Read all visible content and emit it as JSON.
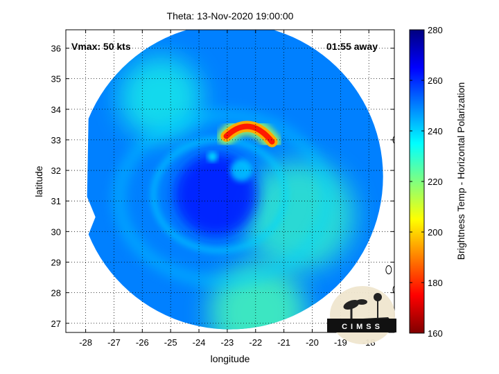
{
  "chart_data": {
    "type": "heatmap",
    "title": "Theta: 13-Nov-2020 19:00:00",
    "xlabel": "longitude",
    "ylabel": "latitude",
    "xlim": [
      -28.7,
      -17.1
    ],
    "ylim": [
      26.7,
      36.6
    ],
    "grid": true,
    "x_ticks": [
      -28,
      -27,
      -26,
      -25,
      -24,
      -23,
      -22,
      -21,
      -20,
      -19,
      -18
    ],
    "y_ticks": [
      27,
      28,
      29,
      30,
      31,
      32,
      33,
      34,
      35,
      36
    ],
    "colorbar": {
      "label": "Brightness Temp - Horizontal Polarization",
      "min": 160,
      "max": 280,
      "ticks": [
        160,
        180,
        200,
        220,
        240,
        260,
        280
      ],
      "colormap": "jet"
    },
    "annotations": {
      "vmax": "Vmax: 50 kts",
      "time_offset": "01:55 away"
    },
    "storm_center": {
      "lon": -23.4,
      "lat": 31.2
    },
    "swath": {
      "center_lon": -22.9,
      "center_lat": 31.8,
      "radius_deg": 5.0,
      "west_edge_lon": -27.9
    },
    "features": [
      {
        "name": "cold-convective-arc",
        "lon": -22.3,
        "lat": 33.3,
        "temp_min": 178
      },
      {
        "name": "eye-region",
        "lon": -23.4,
        "lat": 31.1,
        "temp": 262
      },
      {
        "name": "warm-inner-band",
        "lon": -22.5,
        "lat": 32.0,
        "temp": 240
      }
    ],
    "background_temp": 250,
    "islands": [
      {
        "lon": -17.3,
        "lat": 28.75
      },
      {
        "lon": -17.05,
        "lat": 28.1
      },
      {
        "lon": -17.05,
        "lat": 33.0
      }
    ]
  },
  "logo": {
    "text": "CIMSS"
  }
}
